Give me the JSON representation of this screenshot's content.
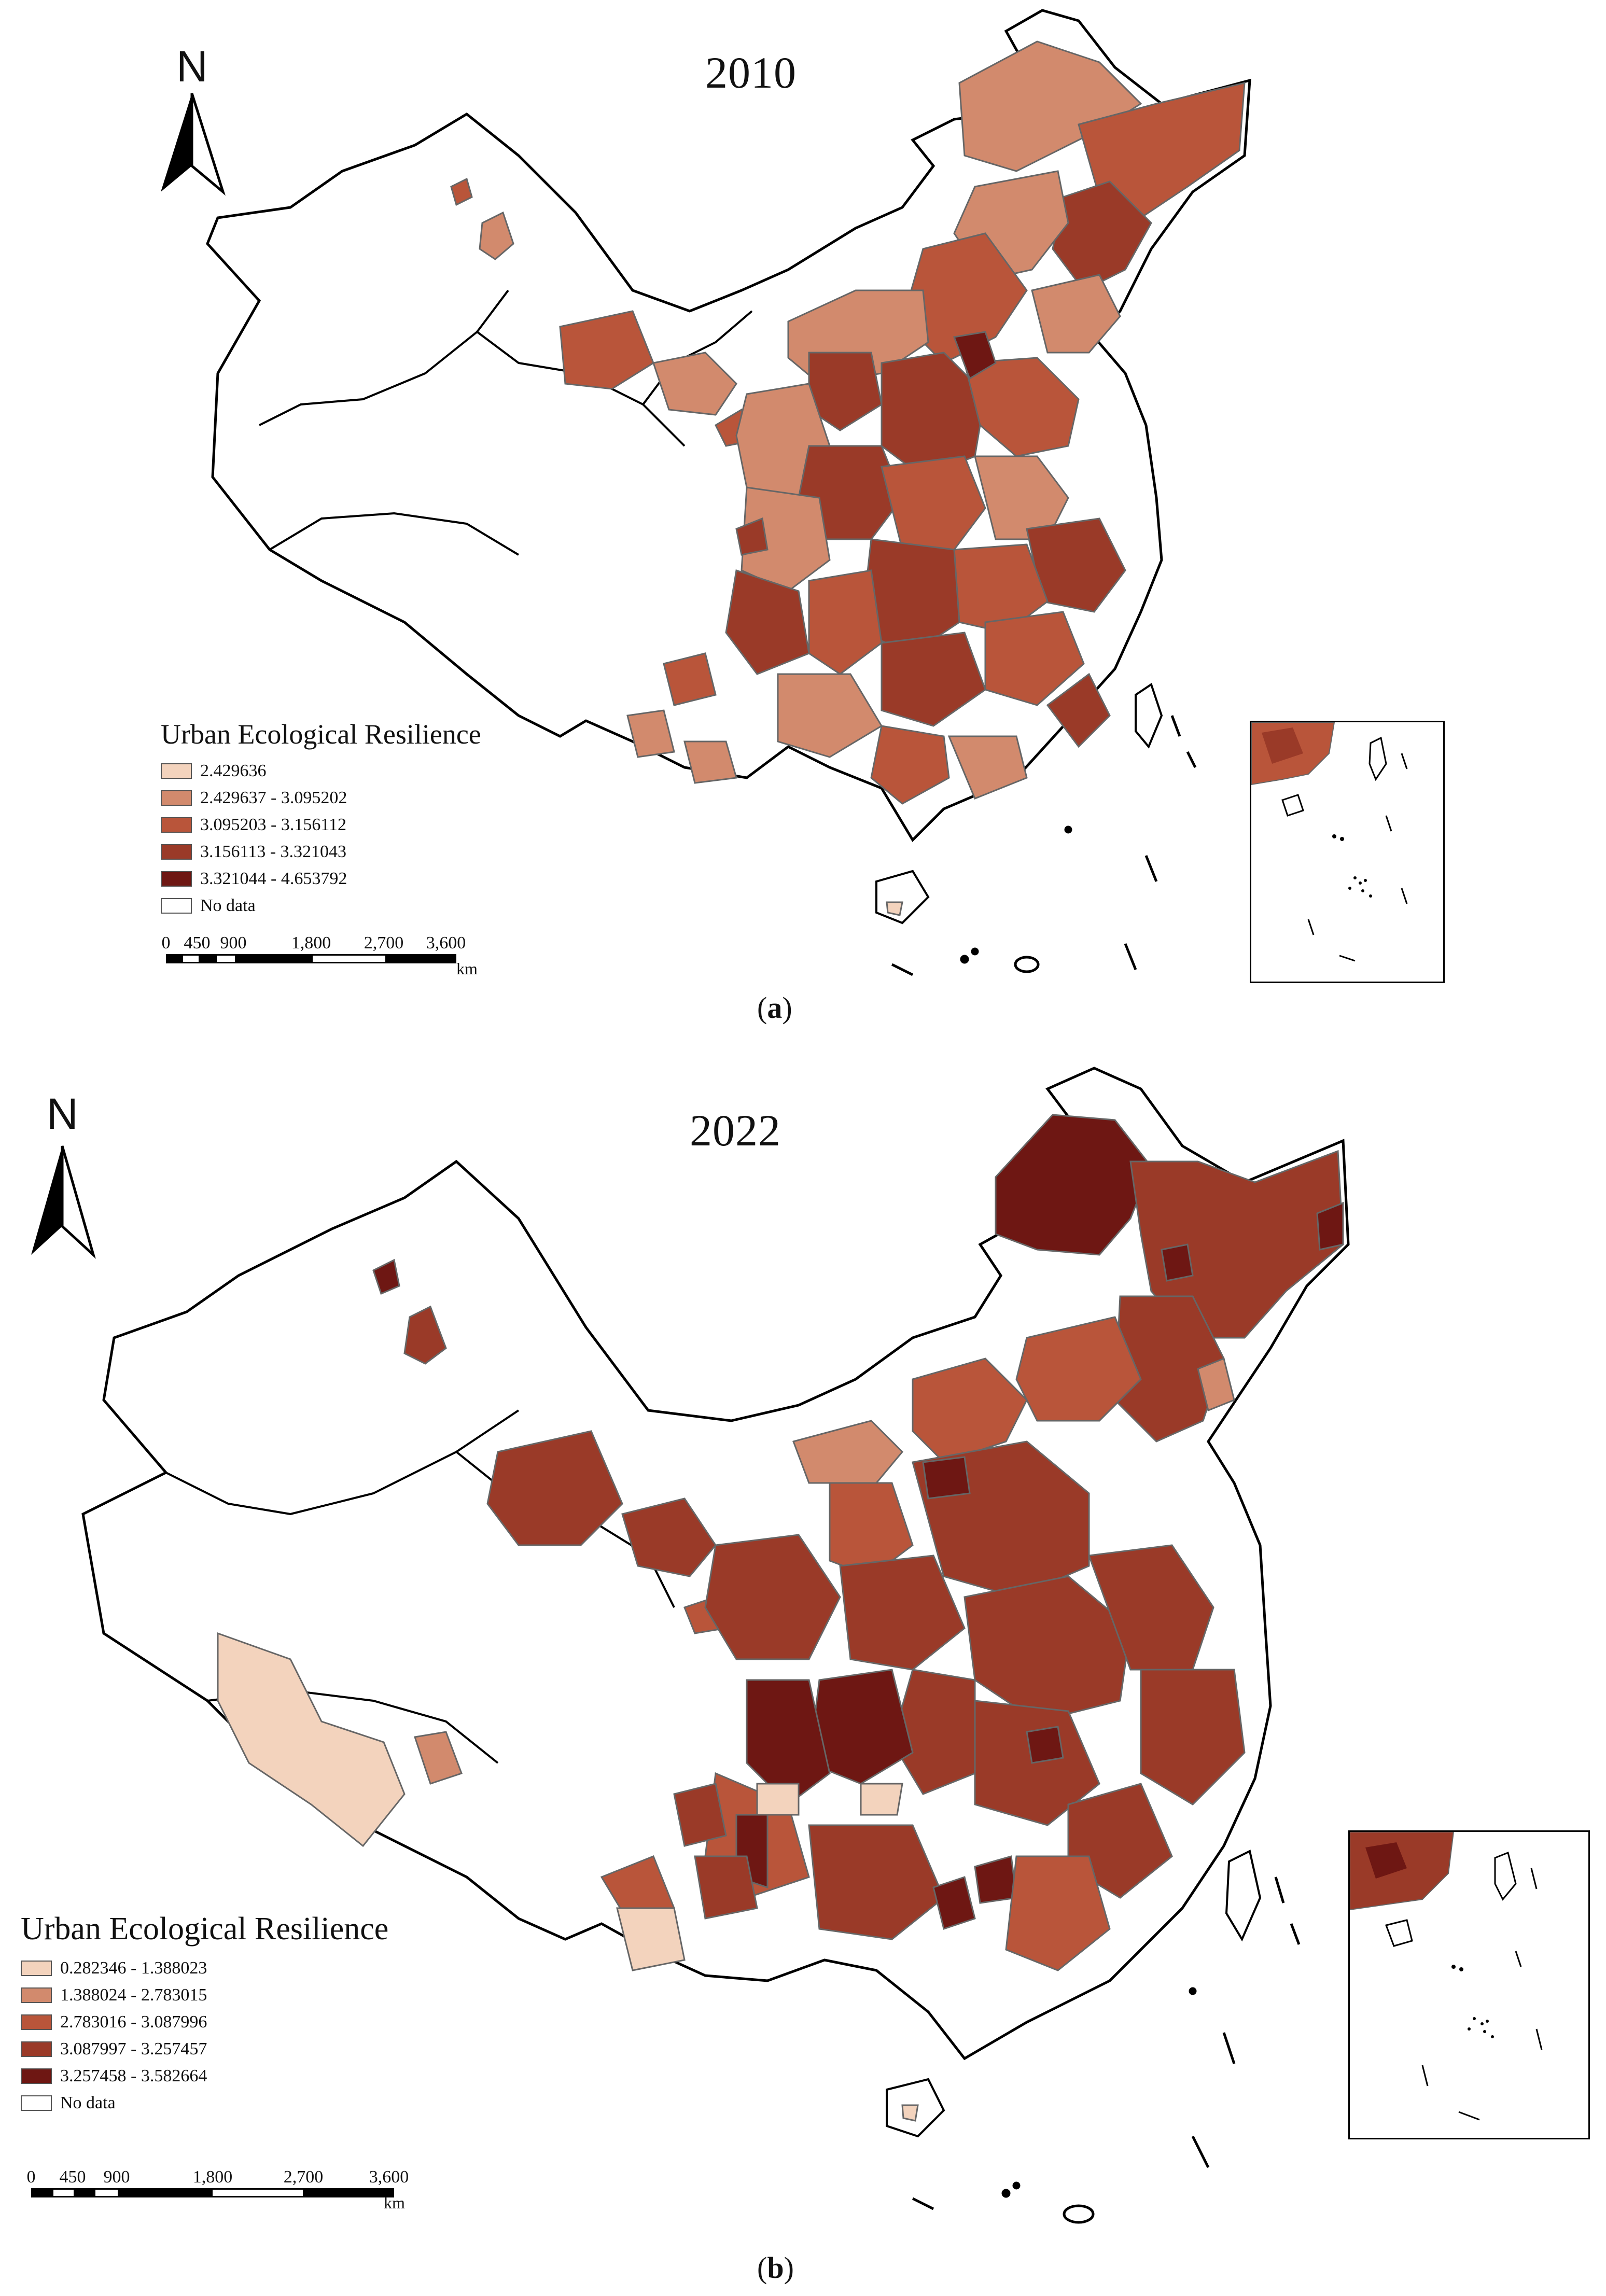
{
  "panels": [
    {
      "id": "a",
      "year": "2010",
      "north": "N",
      "caption_letter": "a",
      "legend": {
        "title": "Urban Ecological Resilience",
        "classes": [
          {
            "label": "2.429636",
            "color": "#f3d3bd"
          },
          {
            "label": "2.429637 - 3.095202",
            "color": "#d28a6d"
          },
          {
            "label": "3.095203 - 3.156112",
            "color": "#b9553a"
          },
          {
            "label": "3.156113 - 3.321043",
            "color": "#9a3a28"
          },
          {
            "label": "3.321044 - 4.653792",
            "color": "#6e1713"
          }
        ],
        "no_data": {
          "label": "No data",
          "color": "#ffffff"
        }
      },
      "scale": {
        "ticks": [
          "0",
          "450",
          "900",
          "1,800",
          "2,700",
          "3,600"
        ],
        "unit": "km"
      }
    },
    {
      "id": "b",
      "year": "2022",
      "north": "N",
      "caption_letter": "b",
      "legend": {
        "title": "Urban Ecological Resilience",
        "classes": [
          {
            "label": "0.282346 - 1.388023",
            "color": "#f3d3bd"
          },
          {
            "label": "1.388024 - 2.783015",
            "color": "#d28a6d"
          },
          {
            "label": "2.783016 - 3.087996",
            "color": "#b9553a"
          },
          {
            "label": "3.087997 - 3.257457",
            "color": "#9a3a28"
          },
          {
            "label": "3.257458 - 3.582664",
            "color": "#6e1713"
          }
        ],
        "no_data": {
          "label": "No data",
          "color": "#ffffff"
        }
      },
      "scale": {
        "ticks": [
          "0",
          "450",
          "900",
          "1,800",
          "2,700",
          "3,600"
        ],
        "unit": "km"
      }
    }
  ]
}
